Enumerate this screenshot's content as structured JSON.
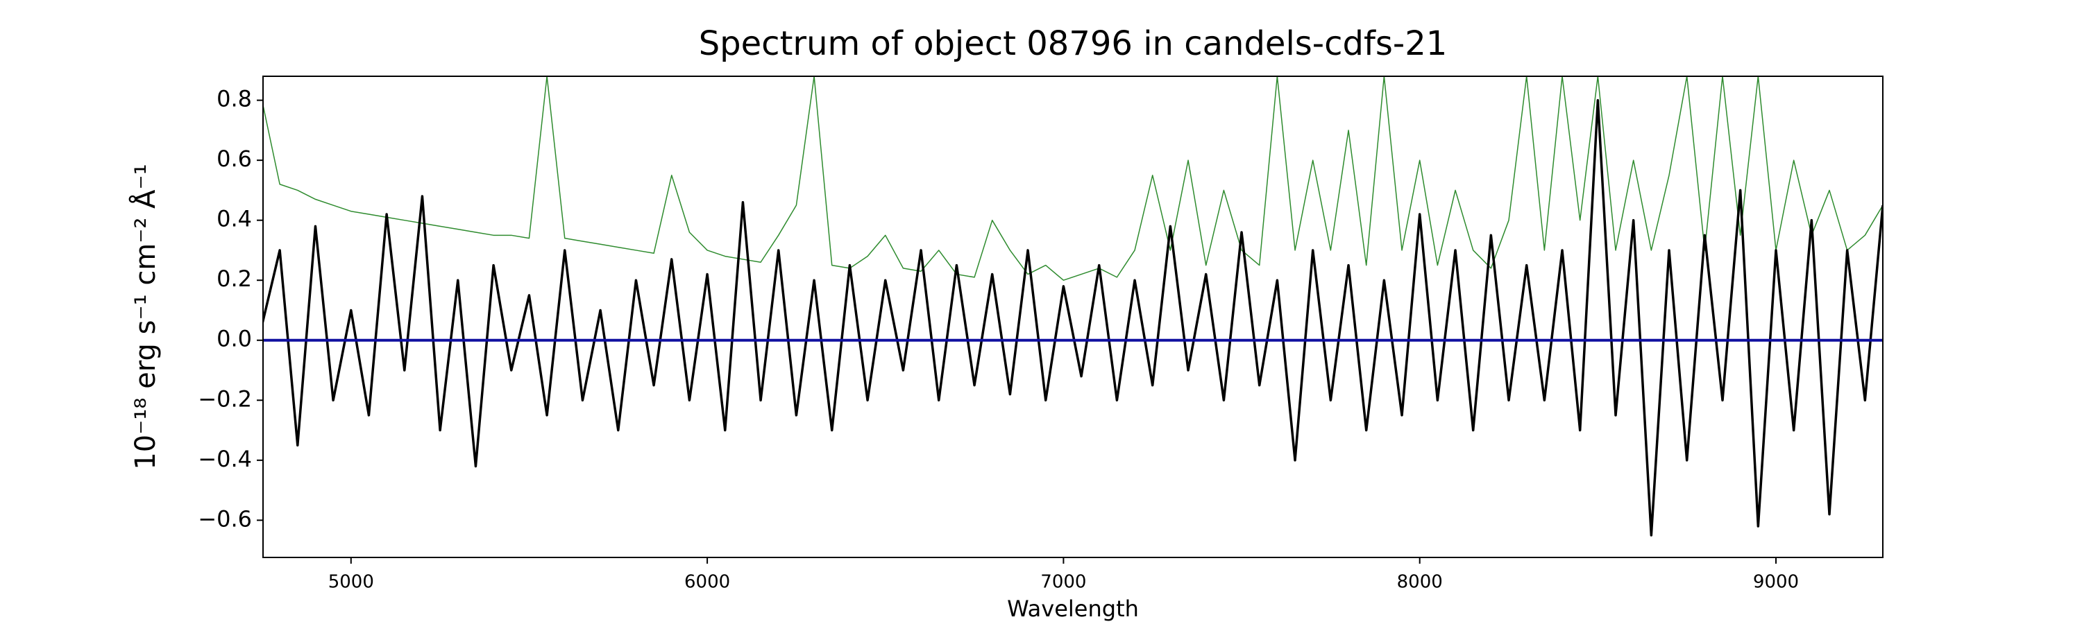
{
  "chart_data": {
    "type": "line",
    "title": "Spectrum of object 08796 in candels-cdfs-21",
    "xlabel": "Wavelength",
    "ylabel": "10⁻¹⁸ erg s⁻¹ cm⁻² Å⁻¹",
    "xlim": [
      4753,
      9300
    ],
    "ylim": [
      -0.724,
      0.88
    ],
    "xticks": [
      5000,
      6000,
      7000,
      8000,
      9000
    ],
    "yticks": [
      {
        "value": -0.6,
        "label": "−0.6"
      },
      {
        "value": -0.4,
        "label": "−0.4"
      },
      {
        "value": -0.2,
        "label": "−0.2"
      },
      {
        "value": 0,
        "label": "0.0"
      },
      0.2,
      0.4,
      0.6,
      0.8
    ],
    "grid": false,
    "series": [
      {
        "color": "#2e8b2e",
        "width": 1.5,
        "x": [
          4750,
          4800,
          4850,
          4900,
          4950,
          5000,
          5050,
          5100,
          5150,
          5200,
          5250,
          5300,
          5350,
          5400,
          5450,
          5500,
          5550,
          5600,
          5650,
          5700,
          5750,
          5800,
          5850,
          5900,
          5950,
          6000,
          6050,
          6100,
          6150,
          6200,
          6250,
          6300,
          6350,
          6400,
          6450,
          6500,
          6550,
          6600,
          6650,
          6700,
          6750,
          6800,
          6850,
          6900,
          6950,
          7000,
          7050,
          7100,
          7150,
          7200,
          7250,
          7300,
          7350,
          7400,
          7450,
          7500,
          7550,
          7600,
          7650,
          7700,
          7750,
          7800,
          7850,
          7900,
          7950,
          8000,
          8050,
          8100,
          8150,
          8200,
          8250,
          8300,
          8350,
          8400,
          8450,
          8500,
          8550,
          8600,
          8650,
          8700,
          8750,
          8800,
          8850,
          8900,
          8950,
          9000,
          9050,
          9100,
          9150,
          9200,
          9250,
          9300
        ],
        "values": [
          0.8,
          0.52,
          0.5,
          0.47,
          0.45,
          0.43,
          0.42,
          0.41,
          0.4,
          0.39,
          0.38,
          0.37,
          0.36,
          0.35,
          0.35,
          0.34,
          0.88,
          0.34,
          0.33,
          0.32,
          0.31,
          0.3,
          0.29,
          0.55,
          0.36,
          0.3,
          0.28,
          0.27,
          0.26,
          0.35,
          0.45,
          0.88,
          0.25,
          0.24,
          0.28,
          0.35,
          0.24,
          0.23,
          0.3,
          0.22,
          0.21,
          0.4,
          0.3,
          0.22,
          0.25,
          0.2,
          0.22,
          0.24,
          0.21,
          0.3,
          0.55,
          0.3,
          0.6,
          0.25,
          0.5,
          0.3,
          0.25,
          0.88,
          0.3,
          0.6,
          0.3,
          0.7,
          0.25,
          0.88,
          0.3,
          0.6,
          0.25,
          0.5,
          0.3,
          0.24,
          0.4,
          0.88,
          0.3,
          0.88,
          0.4,
          0.88,
          0.3,
          0.6,
          0.3,
          0.55,
          0.88,
          0.3,
          0.88,
          0.35,
          0.88,
          0.3,
          0.6,
          0.35,
          0.5,
          0.3,
          0.35,
          0.45
        ]
      },
      {
        "color": "#000000",
        "width": 3.5,
        "x": [
          4750,
          4800,
          4850,
          4900,
          4950,
          5000,
          5050,
          5100,
          5150,
          5200,
          5250,
          5300,
          5350,
          5400,
          5450,
          5500,
          5550,
          5600,
          5650,
          5700,
          5750,
          5800,
          5850,
          5900,
          5950,
          6000,
          6050,
          6100,
          6150,
          6200,
          6250,
          6300,
          6350,
          6400,
          6450,
          6500,
          6550,
          6600,
          6650,
          6700,
          6750,
          6800,
          6850,
          6900,
          6950,
          7000,
          7050,
          7100,
          7150,
          7200,
          7250,
          7300,
          7350,
          7400,
          7450,
          7500,
          7550,
          7600,
          7650,
          7700,
          7750,
          7800,
          7850,
          7900,
          7950,
          8000,
          8050,
          8100,
          8150,
          8200,
          8250,
          8300,
          8350,
          8400,
          8450,
          8500,
          8550,
          8600,
          8650,
          8700,
          8750,
          8800,
          8850,
          8900,
          8950,
          9000,
          9050,
          9100,
          9150,
          9200,
          9250,
          9300
        ],
        "values": [
          0.05,
          0.3,
          -0.35,
          0.38,
          -0.2,
          0.1,
          -0.25,
          0.42,
          -0.1,
          0.48,
          -0.3,
          0.2,
          -0.42,
          0.25,
          -0.1,
          0.15,
          -0.25,
          0.3,
          -0.2,
          0.1,
          -0.3,
          0.2,
          -0.15,
          0.27,
          -0.2,
          0.22,
          -0.3,
          0.46,
          -0.2,
          0.3,
          -0.25,
          0.2,
          -0.3,
          0.25,
          -0.2,
          0.2,
          -0.1,
          0.3,
          -0.2,
          0.25,
          -0.15,
          0.22,
          -0.18,
          0.3,
          -0.2,
          0.18,
          -0.12,
          0.25,
          -0.2,
          0.2,
          -0.15,
          0.38,
          -0.1,
          0.22,
          -0.2,
          0.36,
          -0.15,
          0.2,
          -0.4,
          0.3,
          -0.2,
          0.25,
          -0.3,
          0.2,
          -0.25,
          0.42,
          -0.2,
          0.3,
          -0.3,
          0.35,
          -0.2,
          0.25,
          -0.2,
          0.3,
          -0.3,
          0.8,
          -0.25,
          0.4,
          -0.65,
          0.3,
          -0.4,
          0.35,
          -0.2,
          0.5,
          -0.62,
          0.3,
          -0.3,
          0.4,
          -0.58,
          0.3,
          -0.2,
          0.45
        ]
      },
      {
        "color": "#1010a0",
        "width": 4,
        "x": [
          4753,
          9300
        ],
        "values": [
          0,
          0
        ]
      }
    ]
  }
}
